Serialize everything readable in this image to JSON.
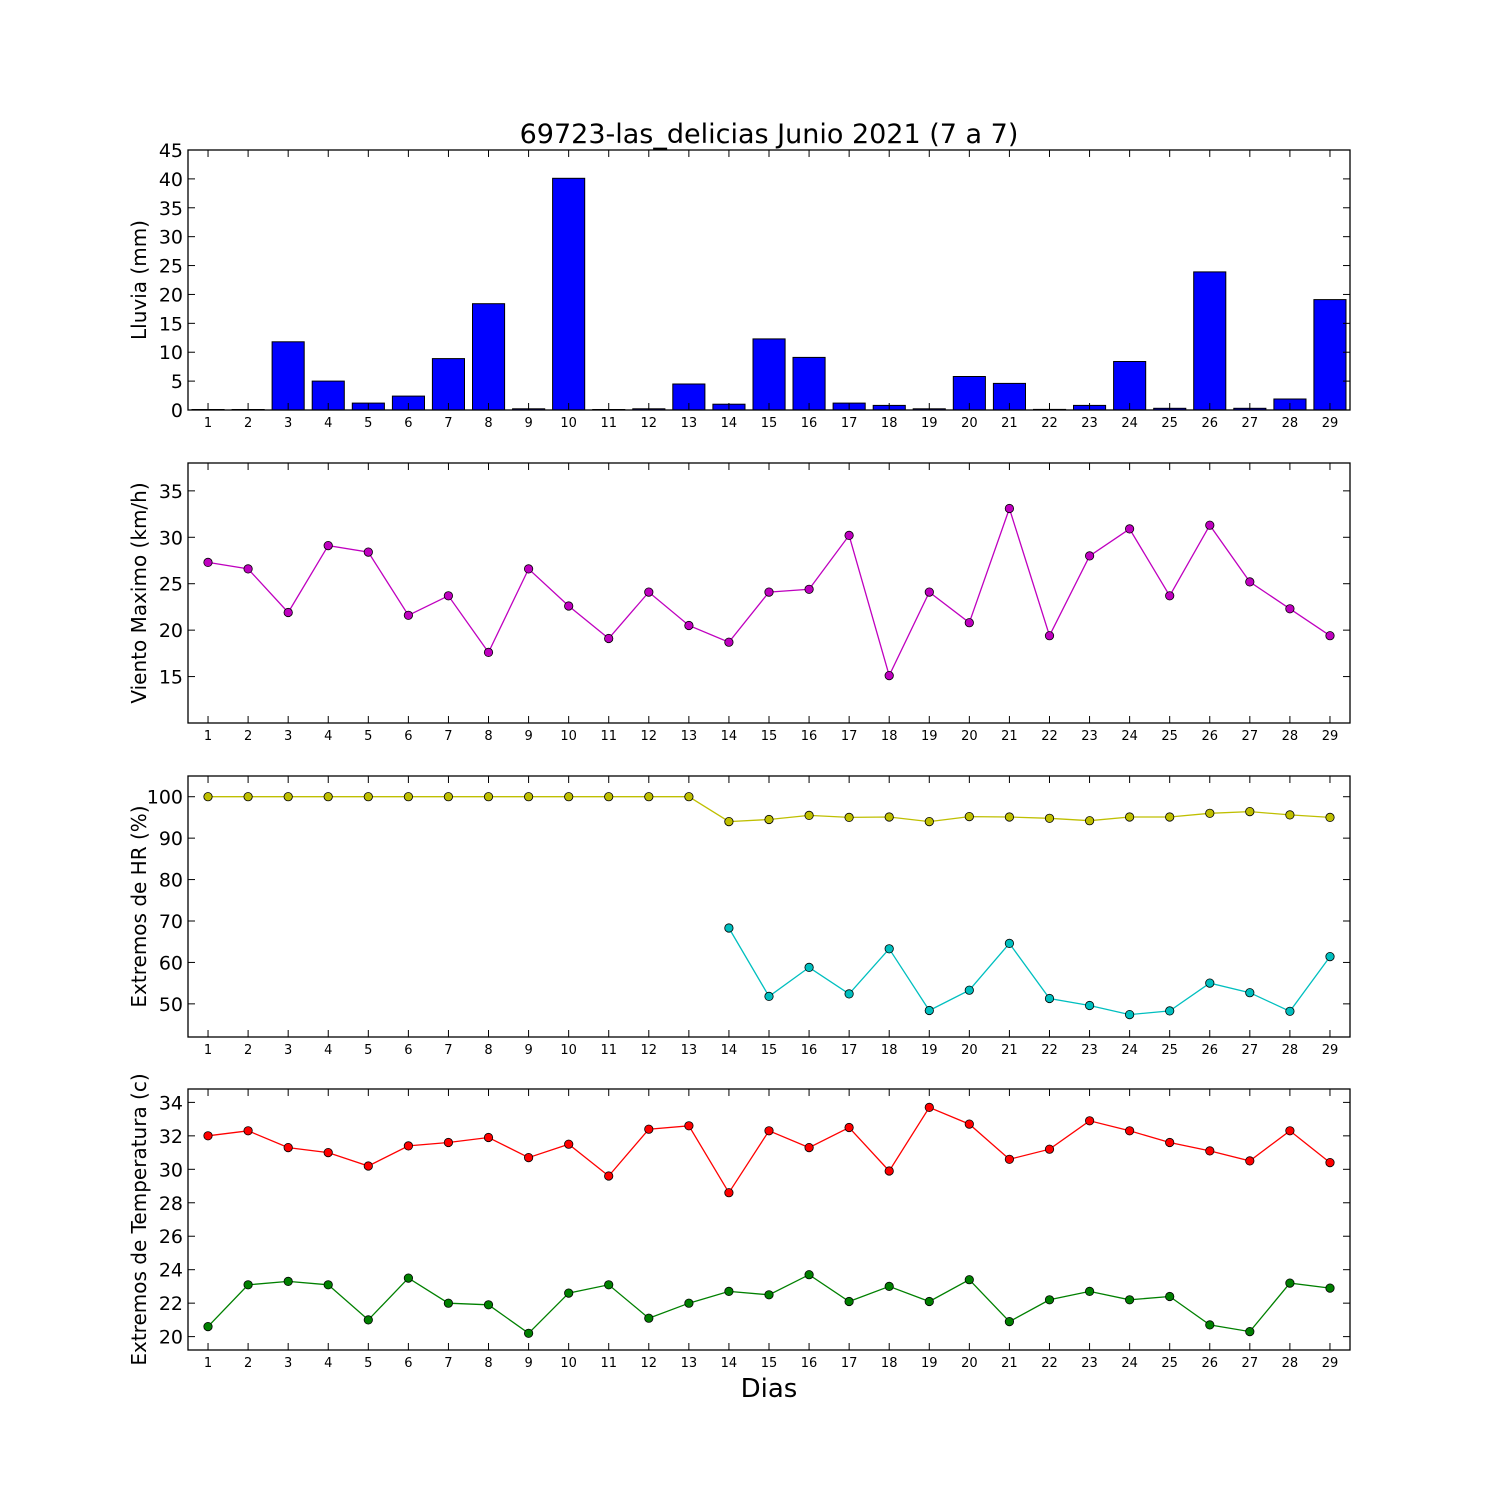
{
  "figure": {
    "title": "69723-las_delicias Junio 2021  (7 a 7)",
    "xlabel": "Dias"
  },
  "chart_data": [
    {
      "type": "bar",
      "ylabel": "Lluvia (mm)",
      "ylim": [
        0,
        45
      ],
      "yticks": [
        0,
        5,
        10,
        15,
        20,
        25,
        30,
        35,
        40,
        45
      ],
      "categories": [
        1,
        2,
        3,
        4,
        5,
        6,
        7,
        8,
        9,
        10,
        11,
        12,
        13,
        14,
        15,
        16,
        17,
        18,
        19,
        20,
        21,
        22,
        23,
        24,
        25,
        26,
        27,
        28,
        29
      ],
      "series": [
        {
          "color": "#0000ff",
          "values": [
            0,
            0,
            11.8,
            5.0,
            1.2,
            2.4,
            8.9,
            18.4,
            0.2,
            40.1,
            0,
            0.2,
            4.5,
            1.0,
            12.3,
            9.1,
            1.2,
            0.8,
            0.2,
            5.8,
            4.6,
            0.1,
            0.8,
            8.4,
            0.3,
            23.9,
            0.3,
            1.9,
            19.1
          ]
        }
      ]
    },
    {
      "type": "line",
      "ylabel": "Viento Maximo (km/h)",
      "ylim": [
        10,
        38
      ],
      "yticks": [
        15,
        20,
        25,
        30,
        35
      ],
      "x": [
        1,
        2,
        3,
        4,
        5,
        6,
        7,
        8,
        9,
        10,
        11,
        12,
        13,
        14,
        15,
        16,
        17,
        18,
        19,
        20,
        21,
        22,
        23,
        24,
        25,
        26,
        27,
        28,
        29
      ],
      "series": [
        {
          "color": "#bf00bf",
          "values": [
            27.3,
            26.6,
            21.9,
            29.1,
            28.4,
            21.6,
            23.7,
            17.6,
            26.6,
            22.6,
            19.1,
            24.1,
            20.5,
            18.7,
            24.1,
            24.4,
            30.2,
            15.1,
            24.1,
            20.8,
            33.1,
            19.4,
            28.0,
            30.9,
            23.7,
            31.3,
            25.2,
            22.3,
            19.4
          ]
        }
      ]
    },
    {
      "type": "line",
      "ylabel": "Extremos de HR (%)",
      "ylim": [
        42,
        105
      ],
      "yticks": [
        50,
        60,
        70,
        80,
        90,
        100
      ],
      "x": [
        1,
        2,
        3,
        4,
        5,
        6,
        7,
        8,
        9,
        10,
        11,
        12,
        13,
        14,
        15,
        16,
        17,
        18,
        19,
        20,
        21,
        22,
        23,
        24,
        25,
        26,
        27,
        28,
        29
      ],
      "series": [
        {
          "color": "#bfbf00",
          "values": [
            100,
            100,
            100,
            100,
            100,
            100,
            100,
            100,
            100,
            100,
            100,
            100,
            100,
            94,
            94.5,
            95.5,
            95,
            95.1,
            94,
            95.2,
            95.1,
            94.8,
            94.2,
            95.1,
            95.1,
            96,
            96.4,
            95.6,
            95
          ]
        },
        {
          "color": "#00bfbf",
          "values": [
            null,
            null,
            null,
            null,
            null,
            null,
            null,
            null,
            null,
            null,
            null,
            null,
            null,
            68.3,
            51.8,
            58.8,
            52.4,
            63.3,
            48.4,
            53.3,
            64.6,
            51.3,
            49.6,
            47.4,
            48.3,
            55.0,
            52.7,
            48.2,
            61.4
          ]
        }
      ]
    },
    {
      "type": "line",
      "ylabel": "Extremos de Temperatura (c)",
      "ylim": [
        19.2,
        34.8
      ],
      "yticks": [
        20,
        22,
        24,
        26,
        28,
        30,
        32,
        34
      ],
      "x": [
        1,
        2,
        3,
        4,
        5,
        6,
        7,
        8,
        9,
        10,
        11,
        12,
        13,
        14,
        15,
        16,
        17,
        18,
        19,
        20,
        21,
        22,
        23,
        24,
        25,
        26,
        27,
        28,
        29
      ],
      "series": [
        {
          "color": "#ff0000",
          "values": [
            32.0,
            32.3,
            31.3,
            31.0,
            30.2,
            31.4,
            31.6,
            31.9,
            30.7,
            31.5,
            29.6,
            32.4,
            32.6,
            28.6,
            32.3,
            31.3,
            32.5,
            29.9,
            33.7,
            32.7,
            30.6,
            31.2,
            32.9,
            32.3,
            31.6,
            31.1,
            30.5,
            32.3,
            30.4
          ]
        },
        {
          "color": "#008000",
          "values": [
            20.6,
            23.1,
            23.3,
            23.1,
            21.0,
            23.5,
            22.0,
            21.9,
            20.2,
            22.6,
            23.1,
            21.1,
            22.0,
            22.7,
            22.5,
            23.7,
            22.1,
            23.0,
            22.1,
            23.4,
            20.9,
            22.2,
            22.7,
            22.2,
            22.4,
            20.7,
            20.3,
            23.2,
            22.9
          ]
        }
      ]
    }
  ]
}
